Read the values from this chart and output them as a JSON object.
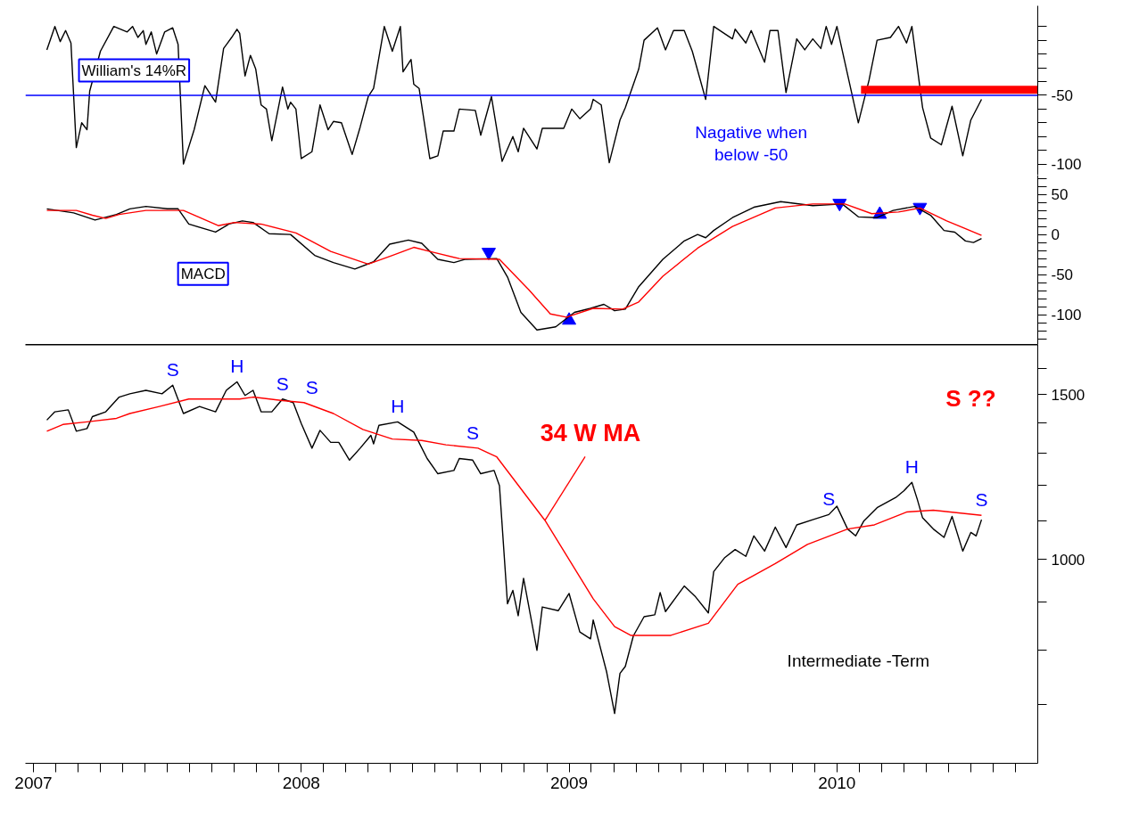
{
  "chart_data": [
    {
      "type": "line",
      "xlim": [
        2006.97,
        2010.75
      ],
      "ylim": [
        -108,
        15
      ],
      "tick_labels": "y",
      "yticks": [
        {
          "value": 0,
          "label": null
        },
        {
          "value": -10,
          "label": null
        },
        {
          "value": -20,
          "label": null
        },
        {
          "value": -30,
          "label": null
        },
        {
          "value": -40,
          "label": null
        },
        -50,
        {
          "value": -60,
          "label": null
        },
        {
          "value": -70,
          "label": null
        },
        {
          "value": -80,
          "label": null
        },
        {
          "value": -90,
          "label": null
        },
        -100
      ],
      "ref_lines": [
        {
          "axis": "y",
          "value": -50,
          "color": "#0000ff"
        }
      ],
      "annotations": [
        "William's 14%R",
        "Nagative when\nbelow -50"
      ],
      "series": [
        {
          "color": "#000000",
          "x": [
            2007.05,
            2007.08,
            2007.1,
            2007.12,
            2007.14,
            2007.16,
            2007.18,
            2007.2,
            2007.21,
            2007.25,
            2007.3,
            2007.35,
            2007.37,
            2007.39,
            2007.41,
            2007.42,
            2007.44,
            2007.46,
            2007.49,
            2007.52,
            2007.54,
            2007.56,
            2007.6,
            2007.64,
            2007.68,
            2007.71,
            2007.74,
            2007.76,
            2007.77,
            2007.79,
            2007.81,
            2007.83,
            2007.85,
            2007.87,
            2007.89,
            2007.93,
            2007.95,
            2007.96,
            2007.98,
            2008.0,
            2008.04,
            2008.07,
            2008.1,
            2008.12,
            2008.15,
            2008.19,
            2008.22,
            2008.25,
            2008.27,
            2008.31,
            2008.34,
            2008.37,
            2008.38,
            2008.41,
            2008.42,
            2008.44,
            2008.48,
            2008.51,
            2008.53,
            2008.57,
            2008.59,
            2008.65,
            2008.67,
            2008.71,
            2008.75,
            2008.79,
            2008.81,
            2008.83,
            2008.88,
            2008.9,
            2008.98,
            2009.01,
            2009.04,
            2009.08,
            2009.09,
            2009.12,
            2009.15,
            2009.19,
            2009.21,
            2009.26,
            2009.28,
            2009.33,
            2009.36,
            2009.39,
            2009.43,
            2009.46,
            2009.51,
            2009.54,
            2009.61,
            2009.62,
            2009.66,
            2009.68,
            2009.73,
            2009.75,
            2009.78,
            2009.81,
            2009.85,
            2009.88,
            2009.91,
            2009.94,
            2009.96,
            2009.98,
            2010.0,
            2010.08,
            2010.12,
            2010.15,
            2010.2,
            2010.23,
            2010.26,
            2010.28,
            2010.32,
            2010.35,
            2010.39,
            2010.43,
            2010.47,
            2010.5,
            2010.54
          ],
          "values": [
            -17,
            0,
            -11,
            -3,
            -12,
            -88,
            -70,
            -75,
            -47,
            -18,
            0,
            -4,
            0,
            -8,
            -3,
            -13,
            -4,
            -20,
            -4,
            -1,
            -13,
            -100,
            -75,
            -43,
            -55,
            -16,
            -8,
            -2,
            -5,
            -36,
            -21,
            -31,
            -57,
            -60,
            -83,
            -44,
            -60,
            -55,
            -60,
            -96,
            -91,
            -57,
            -75,
            -69,
            -70,
            -93,
            -73,
            -51,
            -45,
            0,
            -18,
            0,
            -33,
            -24,
            -42,
            -45,
            -96,
            -94,
            -76,
            -76,
            -60,
            -61,
            -79,
            -51,
            -98,
            -80,
            -91,
            -74,
            -89,
            -74,
            -74,
            -60,
            -67,
            -60,
            -53,
            -57,
            -99,
            -68,
            -59,
            -31,
            -10,
            -1,
            -17,
            -3,
            -3,
            -18,
            -53,
            0,
            -9,
            -2,
            -12,
            -3,
            -26,
            -3,
            -3,
            -48,
            -9,
            -17,
            -9,
            -16,
            0,
            -13,
            0,
            -70,
            -39,
            -10,
            -8,
            0,
            -12,
            0,
            -59,
            -81,
            -86,
            -58,
            -94,
            -68,
            -53
          ]
        },
        {
          "color": "#ff0000",
          "x": [
            2010.09,
            2010.75
          ],
          "values": [
            -46,
            -46
          ]
        }
      ]
    },
    {
      "type": "line",
      "xlim": [
        2006.97,
        2010.75
      ],
      "ylim": [
        -137,
        74
      ],
      "tick_labels": "y",
      "yticks": [
        {
          "value": 70,
          "label": null
        },
        {
          "value": 60,
          "label": null
        },
        50,
        {
          "value": 40,
          "label": null
        },
        {
          "value": 30,
          "label": null
        },
        {
          "value": 20,
          "label": null
        },
        {
          "value": 10,
          "label": null
        },
        0,
        {
          "value": -10,
          "label": null
        },
        {
          "value": -20,
          "label": null
        },
        {
          "value": -30,
          "label": null
        },
        {
          "value": -40,
          "label": null
        },
        -50,
        {
          "value": -60,
          "label": null
        },
        {
          "value": -70,
          "label": null
        },
        {
          "value": -80,
          "label": null
        },
        {
          "value": -90,
          "label": null
        },
        -100,
        {
          "value": -110,
          "label": null
        },
        {
          "value": -120,
          "label": null
        },
        {
          "value": -130,
          "label": null
        }
      ],
      "annotations": [
        "MACD"
      ],
      "series": [
        {
          "color": "#000000",
          "x": [
            2007.05,
            2007.15,
            2007.23,
            2007.31,
            2007.36,
            2007.42,
            2007.5,
            2007.54,
            2007.58,
            2007.68,
            2007.73,
            2007.78,
            2007.82,
            2007.88,
            2007.96,
            2008.05,
            2008.12,
            2008.2,
            2008.27,
            2008.33,
            2008.4,
            2008.45,
            2008.51,
            2008.57,
            2008.61,
            2008.73,
            2008.77,
            2008.82,
            2008.88,
            2008.95,
            2009.02,
            2009.08,
            2009.13,
            2009.17,
            2009.21,
            2009.26,
            2009.35,
            2009.43,
            2009.48,
            2009.51,
            2009.54,
            2009.61,
            2009.69,
            2009.79,
            2009.91,
            2010.02,
            2010.08,
            2010.15,
            2010.21,
            2010.29,
            2010.35,
            2010.4,
            2010.44,
            2010.48,
            2010.51,
            2010.54
          ],
          "values": [
            32,
            27,
            18,
            25,
            32,
            35,
            32,
            32,
            13,
            3,
            13,
            17,
            15,
            1,
            0,
            -26,
            -35,
            -43,
            -34,
            -12,
            -7,
            -11,
            -31,
            -35,
            -31,
            -30,
            -53,
            -97,
            -119,
            -115,
            -97,
            -92,
            -87,
            -95,
            -93,
            -65,
            -31,
            -8,
            0,
            -4,
            5,
            21,
            34,
            41,
            36,
            38,
            22,
            21,
            30,
            35,
            24,
            5,
            3,
            -8,
            -10,
            -5
          ]
        },
        {
          "color": "#ff0000",
          "x": [
            2007.05,
            2007.16,
            2007.22,
            2007.27,
            2007.32,
            2007.42,
            2007.56,
            2007.69,
            2007.75,
            2007.85,
            2007.98,
            2008.11,
            2008.25,
            2008.34,
            2008.42,
            2008.49,
            2008.59,
            2008.74,
            2008.85,
            2008.93,
            2008.99,
            2009.09,
            2009.2,
            2009.26,
            2009.35,
            2009.48,
            2009.61,
            2009.77,
            2009.91,
            2010.03,
            2010.13,
            2010.23,
            2010.31,
            2010.41,
            2010.54
          ],
          "values": [
            30,
            30,
            24,
            20,
            25,
            30,
            30,
            11,
            15,
            13,
            2,
            -21,
            -37,
            -26,
            -16,
            -22,
            -30,
            -31,
            -69,
            -99,
            -103,
            -92,
            -93,
            -84,
            -52,
            -17,
            10,
            33,
            38,
            38,
            26,
            28,
            33,
            17,
            -1
          ]
        },
        {
          "type": "scatter",
          "marker": "triangle",
          "color": "#0000ff",
          "x": [
            2008.7,
            2010.01,
            2010.31
          ],
          "values": [
            -22,
            39,
            34
          ]
        },
        {
          "type": "scatter",
          "marker": "triangle",
          "color": "#0000ff",
          "x": [
            2009.0,
            2010.16
          ],
          "values": [
            -107,
            25
          ]
        }
      ]
    },
    {
      "type": "line",
      "log": true,
      "xlim": [
        2006.97,
        2010.75
      ],
      "ylim": [
        606,
        1697
      ],
      "xticks": [
        2007,
        {
          "value": 2007.083,
          "label": null
        },
        {
          "value": 2007.167,
          "label": null
        },
        {
          "value": 2007.25,
          "label": null
        },
        {
          "value": 2007.333,
          "label": null
        },
        {
          "value": 2007.417,
          "label": null
        },
        {
          "value": 2007.5,
          "label": null
        },
        {
          "value": 2007.583,
          "label": null
        },
        {
          "value": 2007.667,
          "label": null
        },
        {
          "value": 2007.75,
          "label": null
        },
        {
          "value": 2007.833,
          "label": null
        },
        {
          "value": 2007.917,
          "label": null
        },
        2008,
        {
          "value": 2008.083,
          "label": null
        },
        {
          "value": 2008.167,
          "label": null
        },
        {
          "value": 2008.25,
          "label": null
        },
        {
          "value": 2008.333,
          "label": null
        },
        {
          "value": 2008.417,
          "label": null
        },
        {
          "value": 2008.5,
          "label": null
        },
        {
          "value": 2008.583,
          "label": null
        },
        {
          "value": 2008.667,
          "label": null
        },
        {
          "value": 2008.75,
          "label": null
        },
        {
          "value": 2008.833,
          "label": null
        },
        {
          "value": 2008.917,
          "label": null
        },
        2009,
        {
          "value": 2009.083,
          "label": null
        },
        {
          "value": 2009.167,
          "label": null
        },
        {
          "value": 2009.25,
          "label": null
        },
        {
          "value": 2009.333,
          "label": null
        },
        {
          "value": 2009.417,
          "label": null
        },
        {
          "value": 2009.5,
          "label": null
        },
        {
          "value": 2009.583,
          "label": null
        },
        {
          "value": 2009.667,
          "label": null
        },
        {
          "value": 2009.75,
          "label": null
        },
        {
          "value": 2009.833,
          "label": null
        },
        {
          "value": 2009.917,
          "label": null
        },
        2010,
        {
          "value": 2010.083,
          "label": null
        },
        {
          "value": 2010.167,
          "label": null
        },
        {
          "value": 2010.25,
          "label": null
        },
        {
          "value": 2010.333,
          "label": null
        },
        {
          "value": 2010.417,
          "label": null
        },
        {
          "value": 2010.5,
          "label": null
        },
        {
          "value": 2010.583,
          "label": null
        },
        {
          "value": 2010.667,
          "label": null
        }
      ],
      "yticks": [
        {
          "value": 1600,
          "label": null
        },
        1500,
        {
          "value": 1400,
          "label": null
        },
        {
          "value": 1300,
          "label": null
        },
        {
          "value": 1200,
          "label": null
        },
        {
          "value": 1100,
          "label": null
        },
        1000,
        {
          "value": 900,
          "label": null
        },
        {
          "value": 800,
          "label": null
        },
        {
          "value": 700,
          "label": null
        }
      ],
      "annotations": [
        {
          "text": "34 W MA",
          "x": 2008.91,
          "y": 1101
        },
        {
          "text": "S",
          "x": 2007.52,
          "y": 1535
        },
        {
          "text": "H",
          "x": 2007.76,
          "y": 1548
        },
        {
          "text": "S",
          "x": 2007.93,
          "y": 1484
        },
        {
          "text": "S",
          "x": 2008.04,
          "y": 1471
        },
        {
          "text": "H",
          "x": 2008.36,
          "y": 1403
        },
        {
          "text": "S",
          "x": 2008.64,
          "y": 1315
        },
        {
          "text": "S",
          "x": 2009.97,
          "y": 1117
        },
        {
          "text": "H",
          "x": 2010.28,
          "y": 1209
        },
        {
          "text": "S",
          "x": 2010.54,
          "y": 1115
        },
        "S ??",
        "Intermediate -Term"
      ],
      "series": [
        {
          "color": "#000000",
          "x": [
            2007.05,
            2007.08,
            2007.13,
            2007.16,
            2007.2,
            2007.22,
            2007.27,
            2007.32,
            2007.36,
            2007.42,
            2007.48,
            2007.52,
            2007.56,
            2007.62,
            2007.68,
            2007.72,
            2007.76,
            2007.79,
            2007.82,
            2007.85,
            2007.89,
            2007.93,
            2007.97,
            2008.0,
            2008.04,
            2008.07,
            2008.11,
            2008.14,
            2008.18,
            2008.22,
            2008.26,
            2008.27,
            2008.29,
            2008.36,
            2008.42,
            2008.47,
            2008.51,
            2008.57,
            2008.59,
            2008.64,
            2008.67,
            2008.72,
            2008.74,
            2008.77,
            2008.79,
            2008.81,
            2008.83,
            2008.88,
            2008.9,
            2008.96,
            2009.0,
            2009.04,
            2009.08,
            2009.09,
            2009.14,
            2009.17,
            2009.19,
            2009.21,
            2009.24,
            2009.28,
            2009.32,
            2009.34,
            2009.36,
            2009.43,
            2009.47,
            2009.52,
            2009.54,
            2009.58,
            2009.62,
            2009.66,
            2009.69,
            2009.73,
            2009.77,
            2009.81,
            2009.85,
            2009.91,
            2009.97,
            2010.0,
            2010.04,
            2010.07,
            2010.1,
            2010.15,
            2010.22,
            2010.25,
            2010.28,
            2010.3,
            2010.32,
            2010.36,
            2010.4,
            2010.43,
            2010.47,
            2010.5,
            2010.52,
            2010.54
          ],
          "values": [
            1409,
            1438,
            1445,
            1371,
            1380,
            1421,
            1438,
            1491,
            1503,
            1516,
            1503,
            1535,
            1432,
            1457,
            1438,
            1516,
            1548,
            1497,
            1516,
            1438,
            1438,
            1484,
            1471,
            1397,
            1315,
            1374,
            1334,
            1334,
            1277,
            1315,
            1357,
            1329,
            1391,
            1403,
            1368,
            1282,
            1235,
            1245,
            1282,
            1277,
            1235,
            1245,
            1199,
            897,
            927,
            871,
            955,
            800,
            890,
            882,
            920,
            837,
            823,
            862,
            759,
            685,
            756,
            769,
            829,
            869,
            873,
            922,
            880,
            937,
            914,
            877,
            971,
            1004,
            1025,
            1008,
            1060,
            1021,
            1083,
            1030,
            1089,
            1103,
            1117,
            1140,
            1078,
            1060,
            1099,
            1136,
            1165,
            1184,
            1209,
            1160,
            1108,
            1078,
            1056,
            1112,
            1021,
            1069,
            1060,
            1103
          ]
        },
        {
          "color": "#ff0000",
          "x": [
            2007.05,
            2007.11,
            2007.2,
            2007.31,
            2007.36,
            2007.47,
            2007.58,
            2007.77,
            2007.82,
            2007.93,
            2008.01,
            2008.12,
            2008.23,
            2008.34,
            2008.45,
            2008.54,
            2008.66,
            2008.73,
            2008.91,
            2009.09,
            2009.17,
            2009.23,
            2009.38,
            2009.52,
            2009.63,
            2009.77,
            2009.89,
            2010.04,
            2010.14,
            2010.26,
            2010.36,
            2010.54
          ],
          "values": [
            1371,
            1394,
            1403,
            1415,
            1432,
            1457,
            1484,
            1484,
            1491,
            1478,
            1471,
            1432,
            1377,
            1345,
            1340,
            1326,
            1315,
            1287,
            1101,
            908,
            848,
            830,
            830,
            855,
            941,
            990,
            1038,
            1078,
            1089,
            1124,
            1129,
            1115
          ]
        }
      ]
    }
  ]
}
